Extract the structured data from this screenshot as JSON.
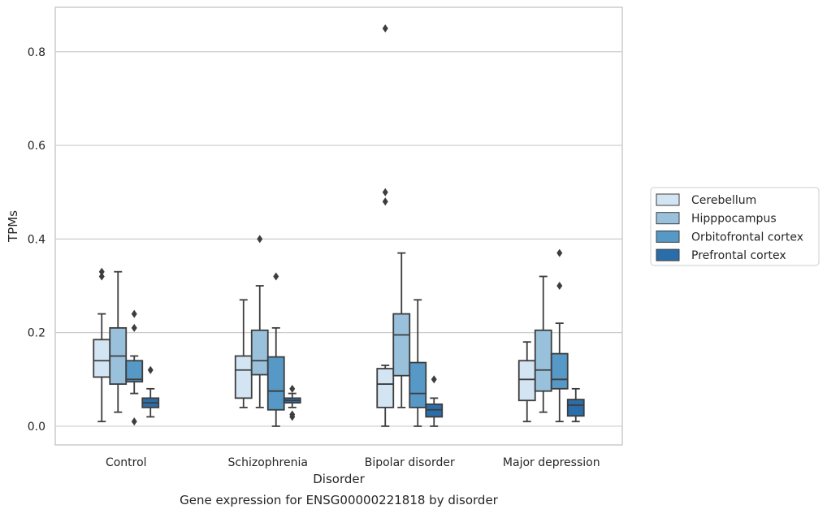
{
  "chart_data": {
    "type": "box",
    "caption": "Gene expression for ENSG00000221818 by disorder",
    "xlabel": "Disorder",
    "ylabel": "TPMs",
    "categories": [
      "Control",
      "Schizophrenia",
      "Bipolar disorder",
      "Major depression"
    ],
    "ylim": [
      -0.04,
      0.895
    ],
    "yticks": [
      0.0,
      0.2,
      0.4,
      0.6,
      0.8
    ],
    "ytick_labels": [
      "0.0",
      "0.2",
      "0.4",
      "0.6",
      "0.8"
    ],
    "grid": "horizontal",
    "legend_position": "right, outside plot",
    "series": [
      {
        "name": "Cerebellum",
        "color": "#d3e4f3",
        "boxes": [
          {
            "whisker_low": 0.01,
            "q1": 0.105,
            "median": 0.14,
            "q3": 0.185,
            "whisker_high": 0.24,
            "outliers": [
              0.32,
              0.33
            ]
          },
          {
            "whisker_low": 0.04,
            "q1": 0.06,
            "median": 0.12,
            "q3": 0.15,
            "whisker_high": 0.27,
            "outliers": []
          },
          {
            "whisker_low": 0.0,
            "q1": 0.04,
            "median": 0.09,
            "q3": 0.123,
            "whisker_high": 0.13,
            "outliers": [
              0.48,
              0.5,
              0.85
            ]
          },
          {
            "whisker_low": 0.01,
            "q1": 0.055,
            "median": 0.1,
            "q3": 0.14,
            "whisker_high": 0.18,
            "outliers": []
          }
        ]
      },
      {
        "name": "Hipppocampus",
        "color": "#9ac1dc",
        "boxes": [
          {
            "whisker_low": 0.03,
            "q1": 0.09,
            "median": 0.15,
            "q3": 0.21,
            "whisker_high": 0.33,
            "outliers": []
          },
          {
            "whisker_low": 0.04,
            "q1": 0.11,
            "median": 0.14,
            "q3": 0.205,
            "whisker_high": 0.3,
            "outliers": [
              0.4
            ]
          },
          {
            "whisker_low": 0.04,
            "q1": 0.108,
            "median": 0.195,
            "q3": 0.24,
            "whisker_high": 0.37,
            "outliers": []
          },
          {
            "whisker_low": 0.03,
            "q1": 0.075,
            "median": 0.12,
            "q3": 0.205,
            "whisker_high": 0.32,
            "outliers": []
          }
        ]
      },
      {
        "name": "Orbitofrontal cortex",
        "color": "#5698c6",
        "boxes": [
          {
            "whisker_low": 0.07,
            "q1": 0.095,
            "median": 0.1,
            "q3": 0.14,
            "whisker_high": 0.15,
            "outliers": [
              0.01,
              0.21,
              0.24
            ]
          },
          {
            "whisker_low": 0.0,
            "q1": 0.035,
            "median": 0.075,
            "q3": 0.148,
            "whisker_high": 0.21,
            "outliers": [
              0.32
            ]
          },
          {
            "whisker_low": 0.0,
            "q1": 0.04,
            "median": 0.07,
            "q3": 0.136,
            "whisker_high": 0.27,
            "outliers": []
          },
          {
            "whisker_low": 0.01,
            "q1": 0.08,
            "median": 0.1,
            "q3": 0.155,
            "whisker_high": 0.22,
            "outliers": [
              0.3,
              0.37
            ]
          }
        ]
      },
      {
        "name": "Prefrontal cortex",
        "color": "#2b6da8",
        "boxes": [
          {
            "whisker_low": 0.02,
            "q1": 0.04,
            "median": 0.05,
            "q3": 0.06,
            "whisker_high": 0.08,
            "outliers": [
              0.12
            ]
          },
          {
            "whisker_low": 0.04,
            "q1": 0.05,
            "median": 0.055,
            "q3": 0.06,
            "whisker_high": 0.07,
            "outliers": [
              0.02,
              0.025,
              0.08
            ]
          },
          {
            "whisker_low": 0.0,
            "q1": 0.02,
            "median": 0.035,
            "q3": 0.047,
            "whisker_high": 0.06,
            "outliers": [
              0.1
            ]
          },
          {
            "whisker_low": 0.01,
            "q1": 0.022,
            "median": 0.045,
            "q3": 0.057,
            "whisker_high": 0.08,
            "outliers": []
          }
        ]
      }
    ]
  }
}
